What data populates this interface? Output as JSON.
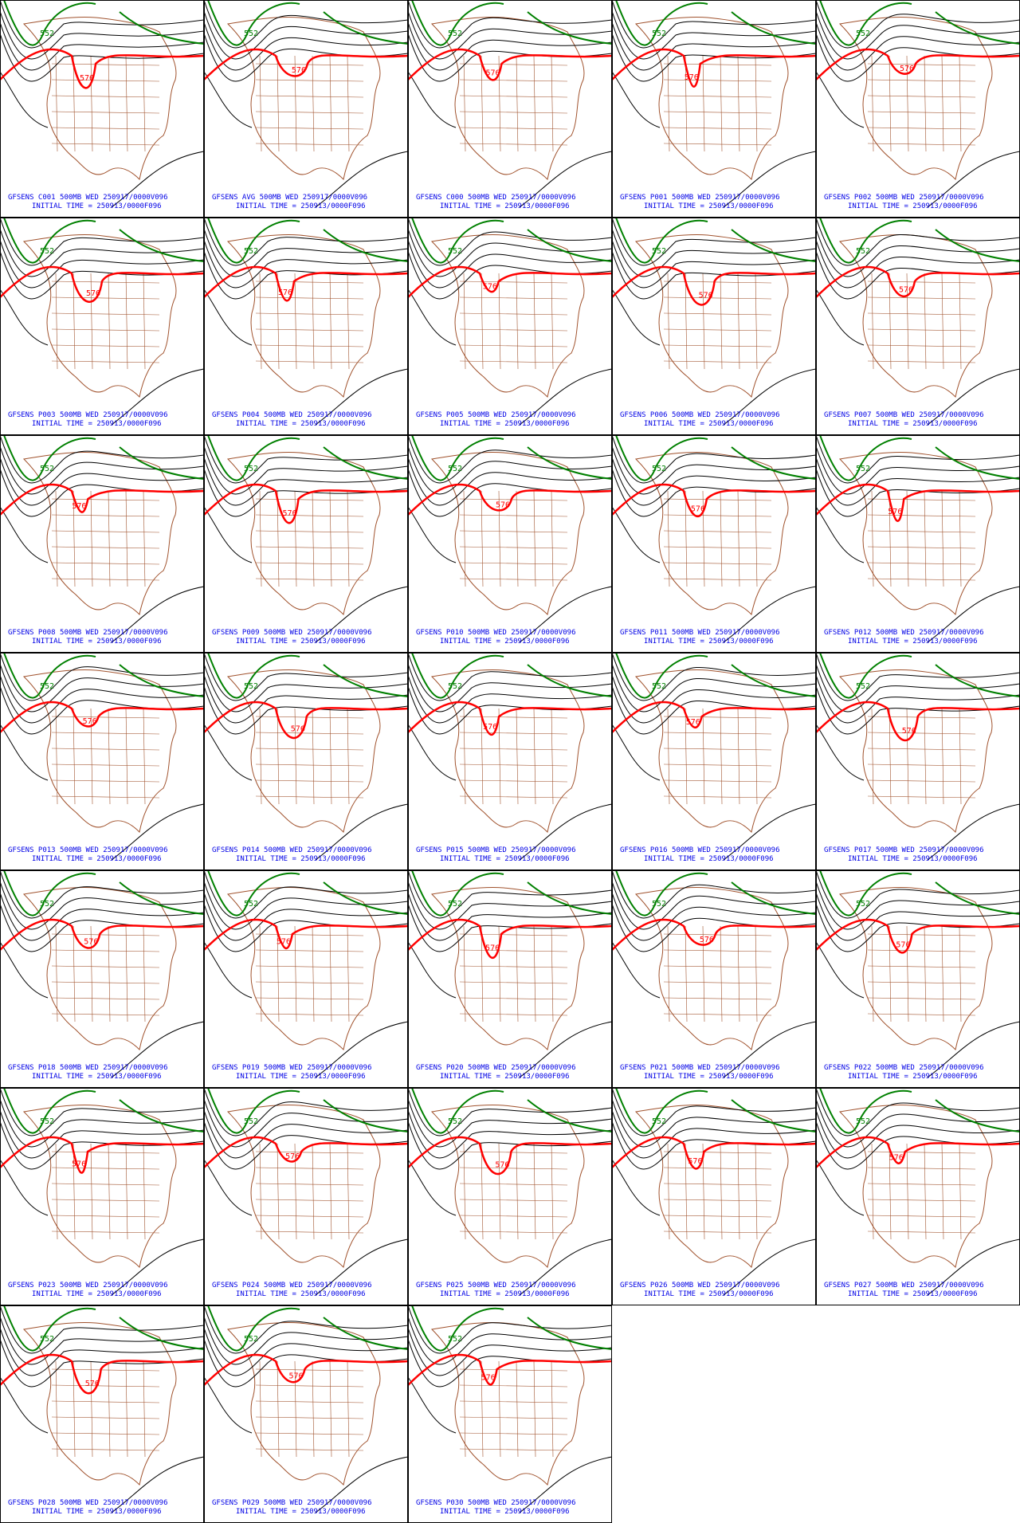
{
  "panels": [
    {
      "title": "GFSENS C001 500MB WED 250917/0000V096",
      "subtitle": "INITIAL TIME = 250913/0000F096",
      "labels": [
        "552",
        "576"
      ]
    },
    {
      "title": "GFSENS AVG 500MB WED 250917/0000V096",
      "subtitle": "INITIAL TIME = 250913/0000F096",
      "labels": [
        "552",
        "576"
      ]
    },
    {
      "title": "GFSENS C000 500MB WED 250917/0000V096",
      "subtitle": "INITIAL TIME = 250913/0000F096",
      "labels": [
        "552",
        "576"
      ]
    },
    {
      "title": "GFSENS P001 500MB WED 250917/0000V096",
      "subtitle": "INITIAL TIME = 250913/0000F096",
      "labels": [
        "552",
        "576"
      ]
    },
    {
      "title": "GFSENS P002 500MB WED 250917/0000V096",
      "subtitle": "INITIAL TIME = 250913/0000F096",
      "labels": [
        "552",
        "576"
      ]
    },
    {
      "title": "GFSENS P003 500MB WED 250917/0000V096",
      "subtitle": "INITIAL TIME = 250913/0000F096",
      "labels": [
        "552",
        "576"
      ]
    },
    {
      "title": "GFSENS P004 500MB WED 250917/0000V096",
      "subtitle": "INITIAL TIME = 250913/0000F096",
      "labels": [
        "552",
        "576"
      ]
    },
    {
      "title": "GFSENS P005 500MB WED 250917/0000V096",
      "subtitle": "INITIAL TIME = 250913/0000F096",
      "labels": [
        "552",
        "576"
      ]
    },
    {
      "title": "GFSENS P006 500MB WED 250917/0000V096",
      "subtitle": "INITIAL TIME = 250913/0000F096",
      "labels": [
        "552",
        "576"
      ]
    },
    {
      "title": "GFSENS P007 500MB WED 250917/0000V096",
      "subtitle": "INITIAL TIME = 250913/0000F096",
      "labels": [
        "552",
        "576"
      ]
    },
    {
      "title": "GFSENS P008 500MB WED 250917/0000V096",
      "subtitle": "INITIAL TIME = 250913/0000F096",
      "labels": [
        "552",
        "576"
      ]
    },
    {
      "title": "GFSENS P009 500MB WED 250917/0000V096",
      "subtitle": "INITIAL TIME = 250913/0000F096",
      "labels": [
        "552",
        "576"
      ]
    },
    {
      "title": "GFSENS P010 500MB WED 250917/0000V096",
      "subtitle": "INITIAL TIME = 250913/0000F096",
      "labels": [
        "552",
        "576"
      ]
    },
    {
      "title": "GFSENS P011 500MB WED 250917/0000V096",
      "subtitle": "INITIAL TIME = 250913/0000F096",
      "labels": [
        "552",
        "576"
      ]
    },
    {
      "title": "GFSENS P012 500MB WED 250917/0000V096",
      "subtitle": "INITIAL TIME = 250913/0000F096",
      "labels": [
        "552",
        "576"
      ]
    },
    {
      "title": "GFSENS P013 500MB WED 250917/0000V096",
      "subtitle": "INITIAL TIME = 250913/0000F096",
      "labels": [
        "552",
        "576"
      ]
    },
    {
      "title": "GFSENS P014 500MB WED 250917/0000V096",
      "subtitle": "INITIAL TIME = 250913/0000F096",
      "labels": [
        "552",
        "576"
      ]
    },
    {
      "title": "GFSENS P015 500MB WED 250917/0000V096",
      "subtitle": "INITIAL TIME = 250913/0000F096",
      "labels": [
        "552",
        "576"
      ]
    },
    {
      "title": "GFSENS P016 500MB WED 250917/0000V096",
      "subtitle": "INITIAL TIME = 250913/0000F096",
      "labels": [
        "552",
        "576"
      ]
    },
    {
      "title": "GFSENS P017 500MB WED 250917/0000V096",
      "subtitle": "INITIAL TIME = 250913/0000F096",
      "labels": [
        "552",
        "576"
      ]
    },
    {
      "title": "GFSENS P018 500MB WED 250917/0000V096",
      "subtitle": "INITIAL TIME = 250913/0000F096",
      "labels": [
        "552",
        "576"
      ]
    },
    {
      "title": "GFSENS P019 500MB WED 250917/0000V096",
      "subtitle": "INITIAL TIME = 250913/0000F096",
      "labels": [
        "552",
        "576"
      ]
    },
    {
      "title": "GFSENS P020 500MB WED 250917/0000V096",
      "subtitle": "INITIAL TIME = 250913/0000F096",
      "labels": [
        "552",
        "576"
      ]
    },
    {
      "title": "GFSENS P021 500MB WED 250917/0000V096",
      "subtitle": "INITIAL TIME = 250913/0000F096",
      "labels": [
        "552",
        "576"
      ]
    },
    {
      "title": "GFSENS P022 500MB WED 250917/0000V096",
      "subtitle": "INITIAL TIME = 250913/0000F096",
      "labels": [
        "552",
        "576"
      ]
    },
    {
      "title": "GFSENS P023 500MB WED 250917/0000V096",
      "subtitle": "INITIAL TIME = 250913/0000F096",
      "labels": [
        "552",
        "576"
      ]
    },
    {
      "title": "GFSENS P024 500MB WED 250917/0000V096",
      "subtitle": "INITIAL TIME = 250913/0000F096",
      "labels": [
        "552",
        "576"
      ]
    },
    {
      "title": "GFSENS P025 500MB WED 250917/0000V096",
      "subtitle": "INITIAL TIME = 250913/0000F096",
      "labels": [
        "552",
        "576"
      ]
    },
    {
      "title": "GFSENS P026 500MB WED 250917/0000V096",
      "subtitle": "INITIAL TIME = 250913/0000F096",
      "labels": [
        "552",
        "576"
      ]
    },
    {
      "title": "GFSENS P027 500MB WED 250917/0000V096",
      "subtitle": "INITIAL TIME = 250913/0000F096",
      "labels": [
        "552",
        "576"
      ]
    },
    {
      "title": "GFSENS P028 500MB WED 250917/0000V096",
      "subtitle": "INITIAL TIME = 250913/0000F096",
      "labels": [
        "552",
        "576"
      ]
    },
    {
      "title": "GFSENS P029 500MB WED 250917/0000V096",
      "subtitle": "INITIAL TIME = 250913/0000F096",
      "labels": [
        "552",
        "576"
      ]
    },
    {
      "title": "GFSENS P030 500MB WED 250917/0000V096",
      "subtitle": "INITIAL TIME = 250913/0000F096",
      "labels": [
        "552",
        "576"
      ]
    }
  ]
}
